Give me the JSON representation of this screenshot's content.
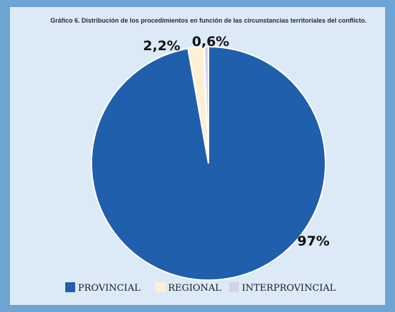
{
  "chart_data": {
    "type": "pie",
    "title": "Gráfico 6. Distribución de los procedimientos en función de las circunstancias territoriales del conflicto.",
    "legend_position": "bottom",
    "slices": [
      {
        "label": "PROVINCIAL",
        "value": 97,
        "display": "97%",
        "color": "#1f5fac"
      },
      {
        "label": "REGIONAL",
        "value": 2.2,
        "display": "2,2%",
        "color": "#fdf0d4"
      },
      {
        "label": "INTERPROVINCIAL",
        "value": 0.6,
        "display": "0,6%",
        "color": "#d3d3ea"
      }
    ]
  },
  "colors": {
    "page_background": "#6da4d4",
    "chart_background": "#dceaf7",
    "slice_border": "#ffffff"
  }
}
